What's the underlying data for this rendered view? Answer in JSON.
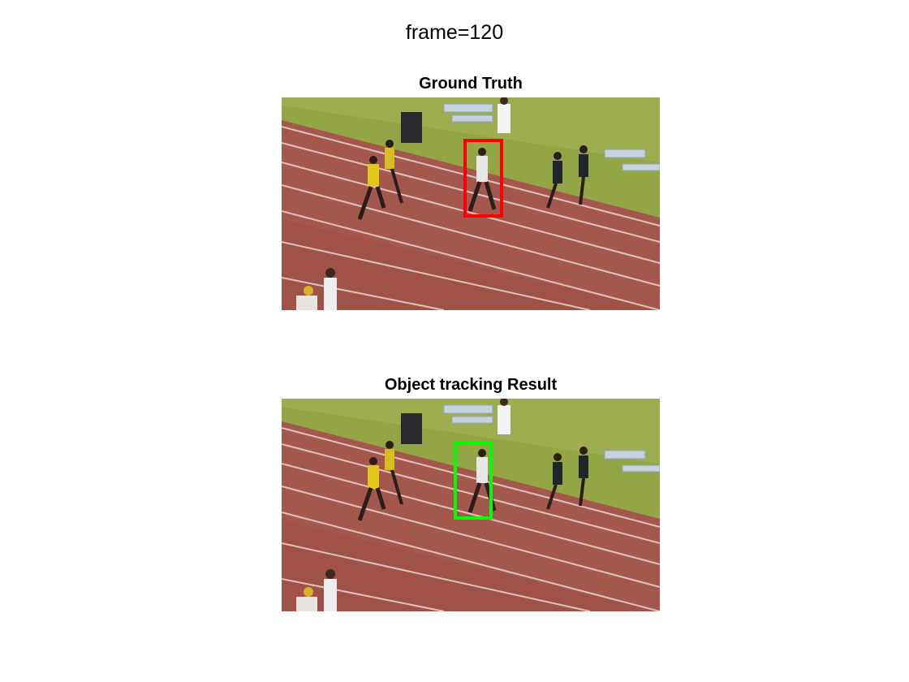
{
  "figure": {
    "title": "frame=120"
  },
  "panels": [
    {
      "title": "Ground Truth",
      "box_color": "#ff0000",
      "image": "video frame of sprinters on a running track"
    },
    {
      "title": "Object tracking Result",
      "box_color": "#00ff00",
      "image": "video frame of sprinters on a running track"
    }
  ]
}
